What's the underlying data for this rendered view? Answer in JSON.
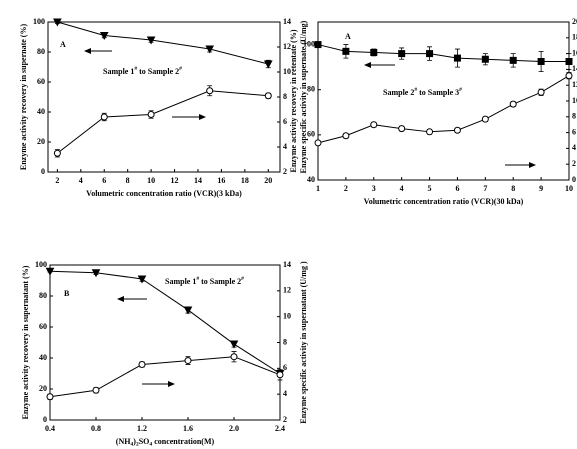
{
  "chart_data": [
    {
      "type": "line",
      "panel_label": "A",
      "annotation": [
        {
          "text": "Sample 1"
        },
        {
          "text": "#",
          "shift": "super"
        },
        {
          "text": " to Sample 2"
        },
        {
          "text": "#",
          "shift": "super"
        }
      ],
      "x_label": [
        {
          "text": "Volumetric concentration ratio (VCR)(3 kDa)"
        }
      ],
      "y_label": "Enzyme activity recovery in supernate (%)",
      "y2_label": "Enzyme specific activity in supernate (U/mg)",
      "x": [
        2,
        6,
        10,
        15,
        20
      ],
      "series": [
        {
          "color": "#000000",
          "marker": "triangle-down",
          "filled": true,
          "values": [
            100,
            91,
            88,
            82,
            72
          ],
          "errors": [
            1,
            1.5,
            1.5,
            2,
            2.5
          ]
        },
        {
          "color": "#000000",
          "marker": "circle",
          "filled": false,
          "axis": "y2",
          "values": [
            3.5,
            6.4,
            6.6,
            8.5,
            8.1
          ],
          "errors": [
            0.3,
            0.3,
            0.3,
            0.4,
            0.2
          ]
        }
      ],
      "xlim": [
        1.2,
        21
      ],
      "xticks": [
        2,
        4,
        6,
        8,
        10,
        12,
        14,
        16,
        18,
        20
      ],
      "ylim": [
        0,
        100
      ],
      "yticks": [
        0,
        20,
        40,
        60,
        80,
        100
      ],
      "y2lim": [
        2,
        14
      ],
      "y2ticks": [
        2,
        4,
        6,
        8,
        10,
        12,
        14
      ]
    },
    {
      "type": "line",
      "panel_label": "A",
      "annotation": [
        {
          "text": "Sample 2"
        },
        {
          "text": "#",
          "shift": "super"
        },
        {
          "text": " to Sample 3"
        },
        {
          "text": "#",
          "shift": "super"
        }
      ],
      "x_label": [
        {
          "text": "Volumetric concentration ratio (VCR)(30 kDa)"
        }
      ],
      "y_label": "Enzyme activity recovery in retentate (%)",
      "y2_label": "Enzyme specific activity in retentate (U/mg)",
      "x": [
        1,
        2,
        3,
        4,
        5,
        6,
        7,
        8,
        9,
        10
      ],
      "series": [
        {
          "color": "#000000",
          "marker": "square",
          "filled": true,
          "values": [
            100,
            97,
            96.5,
            96,
            96,
            94,
            93.5,
            93,
            92.5,
            92.5
          ],
          "errors": [
            0.5,
            3,
            1.5,
            2.5,
            3,
            4,
            2.5,
            3,
            4.5,
            3.5
          ]
        },
        {
          "color": "#000000",
          "marker": "circle",
          "filled": false,
          "axis": "y2",
          "values": [
            4.7,
            5.6,
            7.0,
            6.5,
            6.1,
            6.3,
            7.7,
            9.6,
            11.1,
            13.2
          ],
          "errors": [
            0.2,
            0.3,
            0.3,
            0.3,
            0.3,
            0.3,
            0.3,
            0.3,
            0.4,
            0.4
          ]
        }
      ],
      "xlim": [
        1,
        10
      ],
      "xticks": [
        1,
        2,
        3,
        4,
        5,
        6,
        7,
        8,
        9,
        10
      ],
      "ylim": [
        40,
        110
      ],
      "yticks": [
        40,
        60,
        80,
        100
      ],
      "y2lim": [
        0,
        20
      ],
      "y2ticks": [
        0,
        2,
        4,
        6,
        8,
        10,
        12,
        14,
        16,
        18,
        20
      ]
    },
    {
      "type": "line",
      "panel_label": "B",
      "annotation": [
        {
          "text": "Sample 1"
        },
        {
          "text": "#",
          "shift": "super"
        },
        {
          "text": " to Sample 2"
        },
        {
          "text": "#",
          "shift": "super"
        }
      ],
      "x_label": [
        {
          "text": "(NH"
        },
        {
          "text": "4",
          "shift": "sub"
        },
        {
          "text": ")"
        },
        {
          "text": "2",
          "shift": "sub"
        },
        {
          "text": "SO"
        },
        {
          "text": "4",
          "shift": "sub"
        },
        {
          "text": " concentration(M)"
        }
      ],
      "y_label": "Enzyme activity recovery in supernatant (%)",
      "y2_label": "Enzyme specific activity in supernatant (U/mg )",
      "x": [
        0.4,
        0.8,
        1.2,
        1.6,
        2.0,
        2.4
      ],
      "series": [
        {
          "color": "#000000",
          "marker": "triangle-down",
          "filled": true,
          "values": [
            96,
            95,
            91,
            71,
            49,
            30
          ],
          "errors": [
            0.5,
            1,
            1.5,
            2,
            2,
            1.5
          ]
        },
        {
          "color": "#000000",
          "marker": "circle",
          "filled": false,
          "axis": "y2",
          "values": [
            3.8,
            4.3,
            6.3,
            6.6,
            6.9,
            5.5
          ],
          "errors": [
            0.2,
            0.2,
            0.2,
            0.3,
            0.4,
            0.4
          ]
        }
      ],
      "xlim": [
        0.4,
        2.4
      ],
      "xticks": [
        0.4,
        0.8,
        1.2,
        1.6,
        {
          "value": 2.0,
          "label": "2.0"
        },
        2.4
      ],
      "ylim": [
        0,
        100
      ],
      "yticks": [
        0,
        20,
        40,
        60,
        80,
        100
      ],
      "y2lim": [
        2,
        14
      ],
      "y2ticks": [
        2,
        4,
        6,
        8,
        10,
        12,
        14
      ]
    }
  ]
}
